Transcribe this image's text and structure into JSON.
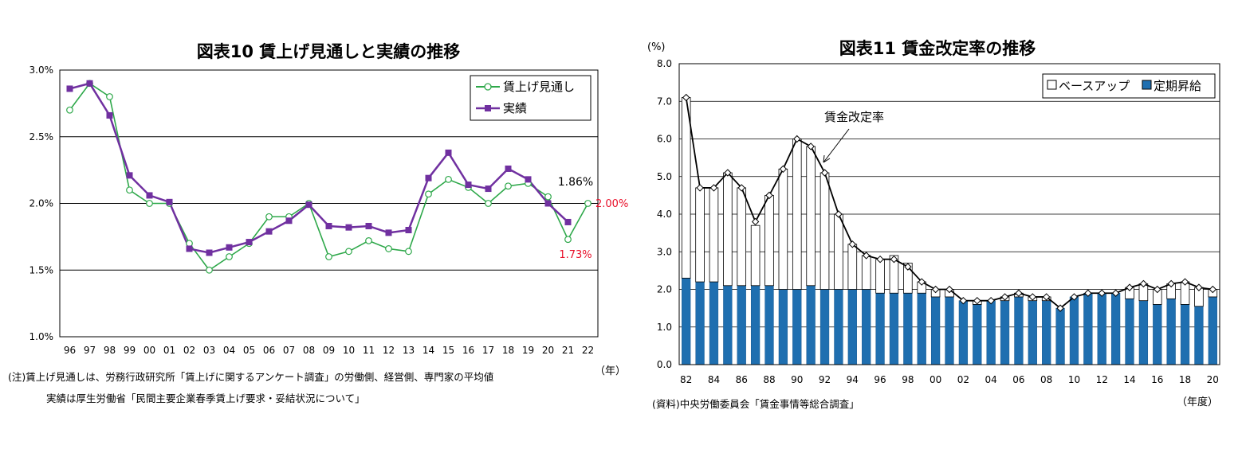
{
  "chart_data": [
    {
      "type": "line",
      "title": "図表10  賃上げ見通しと実績の推移",
      "x": [
        "96",
        "97",
        "98",
        "99",
        "00",
        "01",
        "02",
        "03",
        "04",
        "05",
        "06",
        "07",
        "08",
        "09",
        "10",
        "11",
        "12",
        "13",
        "14",
        "15",
        "16",
        "17",
        "18",
        "19",
        "20",
        "21",
        "22"
      ],
      "x_unit": "（年）",
      "ylim": [
        1.0,
        3.0
      ],
      "y_ticks": [
        "1.0%",
        "1.5%",
        "2.0%",
        "2.5%",
        "3.0%"
      ],
      "grid": true,
      "legend_position": "top-right",
      "series": [
        {
          "name": "賃上げ見通し",
          "color": "#2ea84a",
          "marker": "open-circle",
          "values": [
            2.7,
            2.9,
            2.8,
            2.1,
            2.0,
            2.0,
            1.7,
            1.5,
            1.6,
            1.7,
            1.9,
            1.9,
            2.0,
            1.6,
            1.64,
            1.72,
            1.66,
            1.64,
            2.07,
            2.18,
            2.12,
            2.0,
            2.13,
            2.15,
            2.05,
            1.73,
            2.0
          ]
        },
        {
          "name": "実績",
          "color": "#7030a0",
          "marker": "filled-square",
          "values": [
            2.86,
            2.9,
            2.66,
            2.21,
            2.06,
            2.01,
            1.66,
            1.63,
            1.67,
            1.71,
            1.79,
            1.87,
            1.99,
            1.83,
            1.82,
            1.83,
            1.78,
            1.8,
            2.19,
            2.38,
            2.14,
            2.11,
            2.26,
            2.18,
            2.0,
            1.86,
            null
          ]
        }
      ],
      "annotations": [
        {
          "text": "1.86%",
          "color": "#000000"
        },
        {
          "text": "2.00%",
          "color": "#e8102a"
        },
        {
          "text": "1.73%",
          "color": "#e8102a"
        }
      ],
      "notes": [
        "(注)賃上げ見通しは、労務行政研究所「賃上げに関するアンケート調査」の労働側、経営側、専門家の平均値",
        "実績は厚生労働省「民間主要企業春季賃上げ要求・妥結状況について」"
      ]
    },
    {
      "type": "bar",
      "stacked": true,
      "title": "図表11  賃金改定率の推移",
      "y_unit": "(%)",
      "x_unit": "（年度）",
      "x": [
        1982,
        1983,
        1984,
        1985,
        1986,
        1987,
        1988,
        1989,
        1990,
        1991,
        1992,
        1993,
        1994,
        1995,
        1996,
        1997,
        1998,
        1999,
        2000,
        2001,
        2002,
        2003,
        2004,
        2005,
        2006,
        2007,
        2008,
        2009,
        2010,
        2011,
        2012,
        2013,
        2014,
        2015,
        2016,
        2017,
        2018,
        2019,
        2020
      ],
      "x_tick_labels": [
        "82",
        "84",
        "86",
        "88",
        "90",
        "92",
        "94",
        "96",
        "98",
        "00",
        "02",
        "04",
        "06",
        "08",
        "10",
        "12",
        "14",
        "16",
        "18",
        "20"
      ],
      "ylim": [
        0,
        8
      ],
      "y_ticks": [
        "0.0",
        "1.0",
        "2.0",
        "3.0",
        "4.0",
        "5.0",
        "6.0",
        "7.0",
        "8.0"
      ],
      "grid": true,
      "legend_position": "top-right",
      "series": [
        {
          "name": "定期昇給",
          "color": "#1f6fb0",
          "values": [
            2.3,
            2.2,
            2.2,
            2.1,
            2.1,
            2.1,
            2.1,
            2.0,
            2.0,
            2.1,
            2.0,
            2.0,
            2.0,
            2.0,
            1.9,
            1.9,
            1.9,
            1.9,
            1.8,
            1.8,
            1.7,
            1.6,
            1.7,
            1.7,
            1.8,
            1.7,
            1.7,
            1.5,
            1.8,
            1.9,
            1.9,
            1.9,
            1.75,
            1.7,
            1.6,
            1.75,
            1.6,
            1.55,
            1.8
          ]
        },
        {
          "name": "ベースアップ",
          "color": "#ffffff",
          "values": [
            4.8,
            2.5,
            2.5,
            3.0,
            2.6,
            1.6,
            2.4,
            3.2,
            4.0,
            3.7,
            3.1,
            2.0,
            1.2,
            0.9,
            0.9,
            1.0,
            0.8,
            0.3,
            0.2,
            0.2,
            0.0,
            0.1,
            0.0,
            0.1,
            0.1,
            0.1,
            0.1,
            0.0,
            0.0,
            0.0,
            0.0,
            0.0,
            0.3,
            0.45,
            0.4,
            0.4,
            0.6,
            0.5,
            0.2
          ]
        }
      ],
      "line_series": {
        "name": "賃金改定率",
        "color": "#000000",
        "values": [
          7.1,
          4.7,
          4.7,
          5.1,
          4.7,
          3.8,
          4.5,
          5.2,
          6.0,
          5.8,
          5.1,
          4.0,
          3.2,
          2.9,
          2.8,
          2.8,
          2.6,
          2.2,
          2.0,
          2.0,
          1.7,
          1.7,
          1.7,
          1.8,
          1.9,
          1.8,
          1.8,
          1.5,
          1.8,
          1.9,
          1.9,
          1.9,
          2.05,
          2.15,
          2.0,
          2.15,
          2.2,
          2.05,
          2.0
        ]
      },
      "notes": [
        "(資料)中央労働委員会「賃金事情等総合調査」"
      ]
    }
  ]
}
